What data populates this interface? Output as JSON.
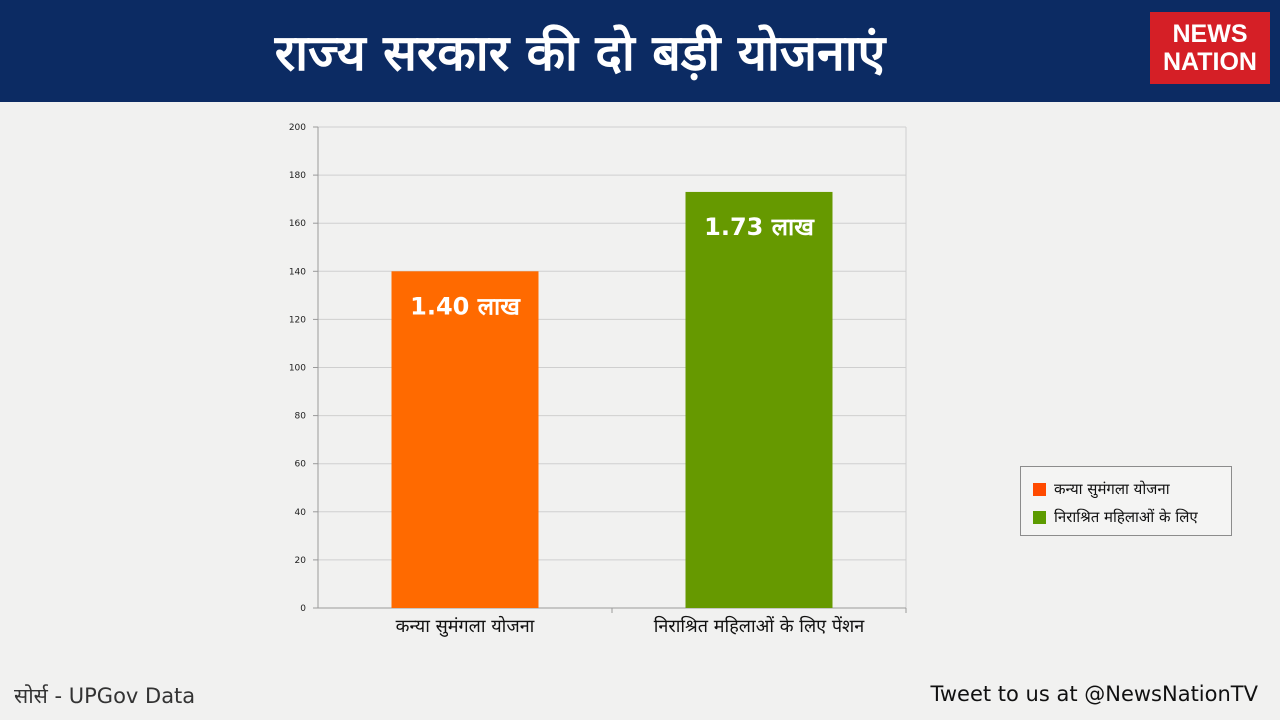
{
  "header": {
    "title": "राज्य सरकार की दो बड़ी योजनाएं",
    "logo_line1": "NEWS",
    "logo_line2": "NATION",
    "bg_color": "#0c2b63",
    "logo_color": "#d51f26"
  },
  "chart_data": {
    "type": "bar",
    "categories": [
      "कन्या सुमंगला योजना",
      "निराश्रित महिलाओं के लिए पेंशन"
    ],
    "series": [
      {
        "values": [
          140,
          173
        ]
      }
    ],
    "bar_colors": [
      "#ff6a00",
      "#669900"
    ],
    "data_labels": [
      "1.40 लाख",
      "1.73 लाख"
    ],
    "y_ticks": [
      0,
      20,
      40,
      60,
      80,
      100,
      120,
      140,
      160,
      180,
      200
    ],
    "ylim": [
      0,
      200
    ],
    "grid": true,
    "legend": {
      "position": "right",
      "entries": [
        {
          "label": "कन्या सुमंगला योजना",
          "color": "#ff4a00"
        },
        {
          "label": "निराश्रित महिलाओं के लिए",
          "color": "#5c9b00"
        }
      ]
    }
  },
  "footer": {
    "source": "सोर्स - UPGov Data",
    "tweet": "Tweet to us at @NewsNationTV"
  }
}
